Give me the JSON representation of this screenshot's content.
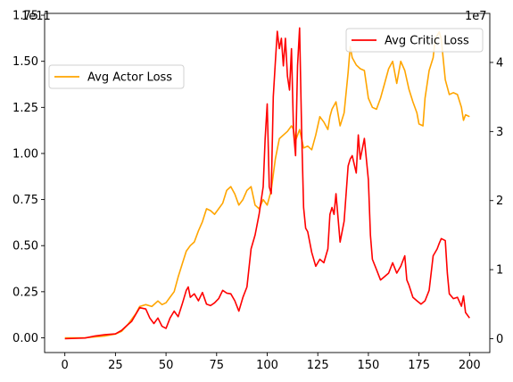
{
  "chart_data": {
    "type": "line",
    "title": "",
    "xlabel": "",
    "ylabel_left": "",
    "ylabel_right": "",
    "left_axis": {
      "multiplier_label": "1e11",
      "ylim": [
        -0.08,
        1.76
      ],
      "ticks": [
        0.0,
        0.25,
        0.5,
        0.75,
        1.0,
        1.25,
        1.5,
        1.75
      ],
      "tick_labels": [
        "0.00",
        "0.25",
        "0.50",
        "0.75",
        "1.00",
        "1.25",
        "1.50",
        "1.75"
      ]
    },
    "right_axis": {
      "multiplier_label": "1e7",
      "ylim": [
        -0.2,
        4.71
      ],
      "ticks": [
        0,
        1,
        2,
        3,
        4
      ],
      "tick_labels": [
        "0",
        "1",
        "2",
        "3",
        "4"
      ]
    },
    "x_axis": {
      "xlim": [
        -10,
        210
      ],
      "ticks": [
        0,
        25,
        50,
        75,
        100,
        125,
        150,
        175,
        200
      ],
      "tick_labels": [
        "0",
        "25",
        "50",
        "75",
        "100",
        "125",
        "150",
        "175",
        "200"
      ]
    },
    "grid": false,
    "series": [
      {
        "name": "Avg Actor Loss",
        "axis": "left",
        "color": "#FFA500",
        "legend_position": "center-left",
        "points": [
          [
            0,
            0
          ],
          [
            10,
            0
          ],
          [
            15,
            0.005
          ],
          [
            20,
            0.01
          ],
          [
            25,
            0.02
          ],
          [
            28,
            0.035
          ],
          [
            31,
            0.07
          ],
          [
            33,
            0.1
          ],
          [
            35,
            0.13
          ],
          [
            37,
            0.17
          ],
          [
            40,
            0.18
          ],
          [
            43,
            0.17
          ],
          [
            46,
            0.2
          ],
          [
            48,
            0.18
          ],
          [
            50,
            0.19
          ],
          [
            52,
            0.22
          ],
          [
            54,
            0.25
          ],
          [
            56,
            0.33
          ],
          [
            58,
            0.4
          ],
          [
            60,
            0.47
          ],
          [
            62,
            0.5
          ],
          [
            64,
            0.52
          ],
          [
            66,
            0.58
          ],
          [
            68,
            0.63
          ],
          [
            70,
            0.7
          ],
          [
            72,
            0.69
          ],
          [
            74,
            0.67
          ],
          [
            76,
            0.7
          ],
          [
            78,
            0.73
          ],
          [
            80,
            0.8
          ],
          [
            82,
            0.82
          ],
          [
            84,
            0.78
          ],
          [
            86,
            0.72
          ],
          [
            88,
            0.75
          ],
          [
            90,
            0.8
          ],
          [
            92,
            0.82
          ],
          [
            94,
            0.72
          ],
          [
            96,
            0.7
          ],
          [
            98,
            0.75
          ],
          [
            100,
            0.72
          ],
          [
            102,
            0.8
          ],
          [
            104,
            0.97
          ],
          [
            106,
            1.08
          ],
          [
            108,
            1.1
          ],
          [
            110,
            1.12
          ],
          [
            112,
            1.15
          ],
          [
            113,
            1.13
          ],
          [
            114,
            1.07
          ],
          [
            116,
            1.13
          ],
          [
            118,
            1.03
          ],
          [
            120,
            1.04
          ],
          [
            122,
            1.02
          ],
          [
            124,
            1.1
          ],
          [
            126,
            1.2
          ],
          [
            128,
            1.17
          ],
          [
            130,
            1.13
          ],
          [
            131,
            1.2
          ],
          [
            132,
            1.24
          ],
          [
            134,
            1.28
          ],
          [
            136,
            1.15
          ],
          [
            138,
            1.22
          ],
          [
            140,
            1.44
          ],
          [
            141,
            1.58
          ],
          [
            142,
            1.52
          ],
          [
            144,
            1.48
          ],
          [
            146,
            1.46
          ],
          [
            148,
            1.45
          ],
          [
            150,
            1.3
          ],
          [
            152,
            1.25
          ],
          [
            154,
            1.24
          ],
          [
            156,
            1.3
          ],
          [
            158,
            1.38
          ],
          [
            160,
            1.46
          ],
          [
            162,
            1.5
          ],
          [
            164,
            1.38
          ],
          [
            166,
            1.5
          ],
          [
            168,
            1.45
          ],
          [
            170,
            1.35
          ],
          [
            172,
            1.28
          ],
          [
            174,
            1.22
          ],
          [
            175,
            1.16
          ],
          [
            177,
            1.15
          ],
          [
            178,
            1.3
          ],
          [
            180,
            1.45
          ],
          [
            182,
            1.52
          ],
          [
            183,
            1.62
          ],
          [
            185,
            1.66
          ],
          [
            186,
            1.62
          ],
          [
            188,
            1.4
          ],
          [
            190,
            1.32
          ],
          [
            192,
            1.33
          ],
          [
            194,
            1.32
          ],
          [
            196,
            1.25
          ],
          [
            197,
            1.18
          ],
          [
            198,
            1.21
          ],
          [
            200,
            1.2
          ]
        ]
      },
      {
        "name": "Avg Critic Loss",
        "axis": "right",
        "color": "#FF0000",
        "legend_position": "top-right",
        "points": [
          [
            0,
            0
          ],
          [
            10,
            0.01
          ],
          [
            15,
            0.04
          ],
          [
            20,
            0.06
          ],
          [
            25,
            0.07
          ],
          [
            28,
            0.12
          ],
          [
            31,
            0.2
          ],
          [
            33,
            0.25
          ],
          [
            35,
            0.35
          ],
          [
            37,
            0.45
          ],
          [
            40,
            0.43
          ],
          [
            42,
            0.3
          ],
          [
            44,
            0.22
          ],
          [
            46,
            0.3
          ],
          [
            48,
            0.18
          ],
          [
            50,
            0.15
          ],
          [
            52,
            0.3
          ],
          [
            54,
            0.4
          ],
          [
            56,
            0.32
          ],
          [
            58,
            0.5
          ],
          [
            60,
            0.7
          ],
          [
            61,
            0.75
          ],
          [
            62,
            0.6
          ],
          [
            64,
            0.65
          ],
          [
            66,
            0.55
          ],
          [
            68,
            0.67
          ],
          [
            70,
            0.5
          ],
          [
            72,
            0.48
          ],
          [
            74,
            0.52
          ],
          [
            76,
            0.58
          ],
          [
            78,
            0.7
          ],
          [
            80,
            0.66
          ],
          [
            82,
            0.65
          ],
          [
            84,
            0.55
          ],
          [
            86,
            0.4
          ],
          [
            88,
            0.6
          ],
          [
            90,
            0.75
          ],
          [
            92,
            1.3
          ],
          [
            94,
            1.5
          ],
          [
            96,
            1.8
          ],
          [
            98,
            2.2
          ],
          [
            99,
            2.9
          ],
          [
            100,
            3.4
          ],
          [
            101,
            2.2
          ],
          [
            102,
            2.1
          ],
          [
            103,
            3.5
          ],
          [
            104,
            4.0
          ],
          [
            105,
            4.45
          ],
          [
            106,
            4.2
          ],
          [
            107,
            4.35
          ],
          [
            108,
            3.95
          ],
          [
            109,
            4.35
          ],
          [
            110,
            3.8
          ],
          [
            111,
            3.6
          ],
          [
            112,
            4.2
          ],
          [
            113,
            3.0
          ],
          [
            114,
            2.65
          ],
          [
            115,
            3.95
          ],
          [
            116,
            4.5
          ],
          [
            117,
            3.0
          ],
          [
            118,
            1.9
          ],
          [
            119,
            1.6
          ],
          [
            120,
            1.55
          ],
          [
            122,
            1.25
          ],
          [
            124,
            1.05
          ],
          [
            126,
            1.15
          ],
          [
            128,
            1.1
          ],
          [
            130,
            1.3
          ],
          [
            131,
            1.8
          ],
          [
            132,
            1.9
          ],
          [
            133,
            1.8
          ],
          [
            134,
            2.1
          ],
          [
            136,
            1.4
          ],
          [
            138,
            1.7
          ],
          [
            140,
            2.5
          ],
          [
            141,
            2.6
          ],
          [
            142,
            2.65
          ],
          [
            144,
            2.4
          ],
          [
            145,
            2.95
          ],
          [
            146,
            2.6
          ],
          [
            148,
            2.9
          ],
          [
            150,
            2.3
          ],
          [
            151,
            1.5
          ],
          [
            152,
            1.15
          ],
          [
            154,
            1.0
          ],
          [
            156,
            0.85
          ],
          [
            158,
            0.9
          ],
          [
            160,
            0.95
          ],
          [
            162,
            1.1
          ],
          [
            164,
            0.95
          ],
          [
            166,
            1.05
          ],
          [
            168,
            1.2
          ],
          [
            169,
            0.85
          ],
          [
            170,
            0.78
          ],
          [
            172,
            0.6
          ],
          [
            174,
            0.55
          ],
          [
            176,
            0.5
          ],
          [
            178,
            0.55
          ],
          [
            180,
            0.7
          ],
          [
            182,
            1.2
          ],
          [
            184,
            1.3
          ],
          [
            185,
            1.38
          ],
          [
            186,
            1.45
          ],
          [
            188,
            1.42
          ],
          [
            189,
            0.95
          ],
          [
            190,
            0.65
          ],
          [
            192,
            0.58
          ],
          [
            194,
            0.6
          ],
          [
            196,
            0.47
          ],
          [
            197,
            0.62
          ],
          [
            198,
            0.38
          ],
          [
            200,
            0.3
          ]
        ]
      }
    ]
  }
}
